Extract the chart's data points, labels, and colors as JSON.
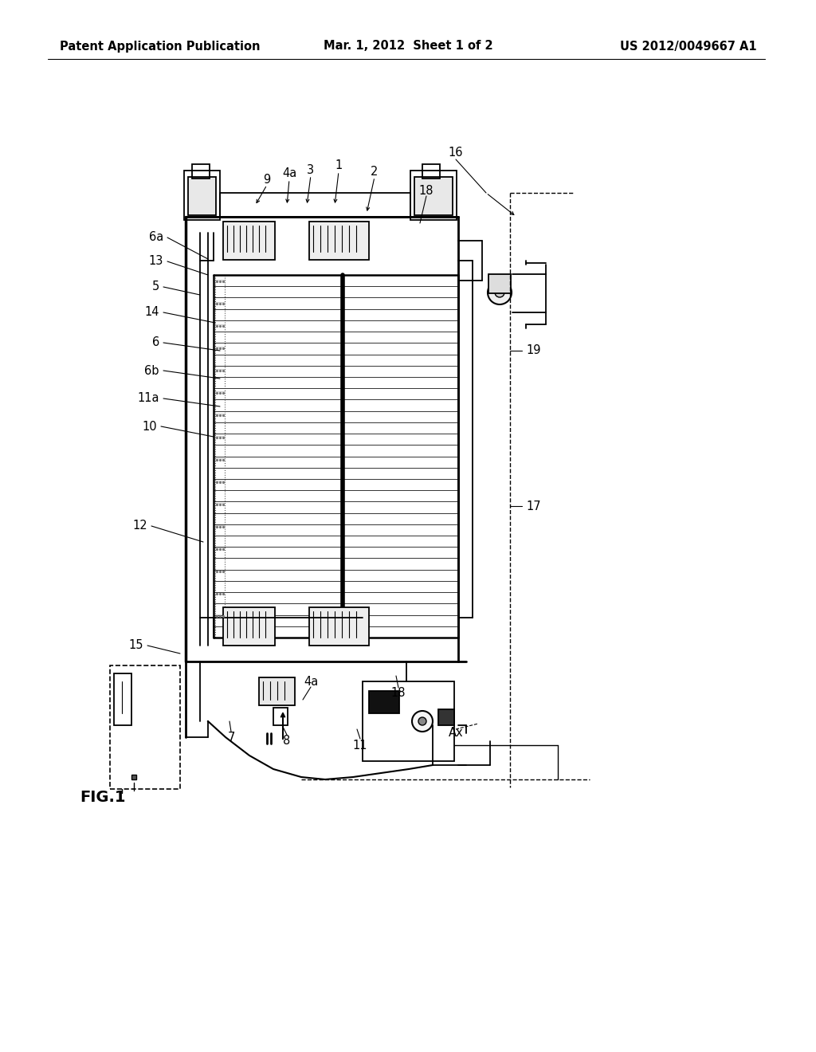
{
  "bg_color": "#ffffff",
  "header_left": "Patent Application Publication",
  "header_mid": "Mar. 1, 2012  Sheet 1 of 2",
  "header_right": "US 2012/0049667 A1",
  "fig_label": "FIG.1"
}
